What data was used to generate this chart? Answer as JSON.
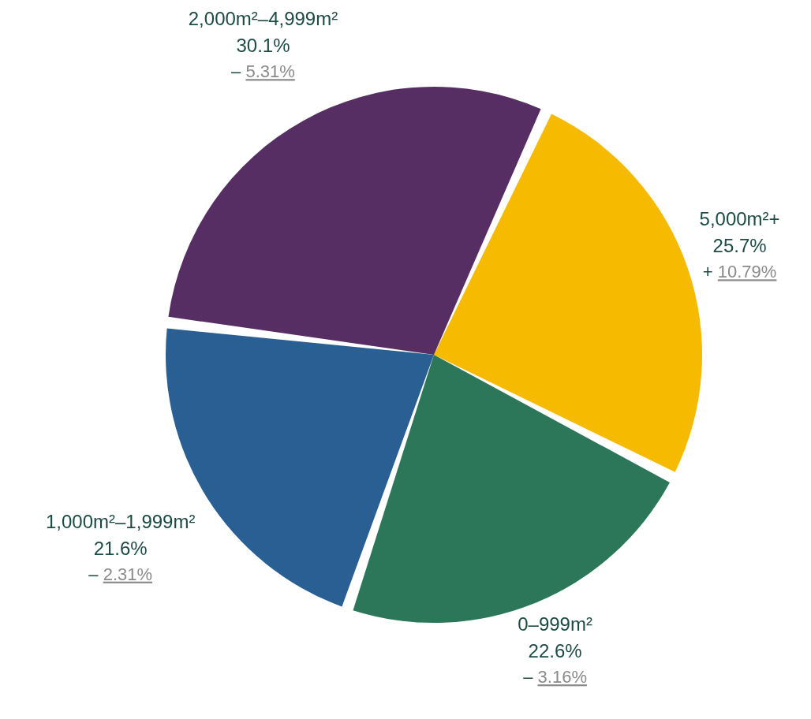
{
  "chart_data": {
    "type": "pie",
    "categories": [
      "5,000m²+",
      "0–999m²",
      "1,000m²–1,999m²",
      "2,000m²–4,999m²"
    ],
    "values": [
      25.7,
      22.6,
      21.6,
      30.1
    ],
    "colors": [
      "#f6bb00",
      "#2c7659",
      "#2a5f94",
      "#562e63"
    ],
    "value_labels": [
      "25.7%",
      "22.6%",
      "21.6%",
      "30.1%"
    ],
    "annotations": [
      "+ 10.79%",
      "– 3.16%",
      "– 2.31%",
      "– 5.31%"
    ]
  }
}
